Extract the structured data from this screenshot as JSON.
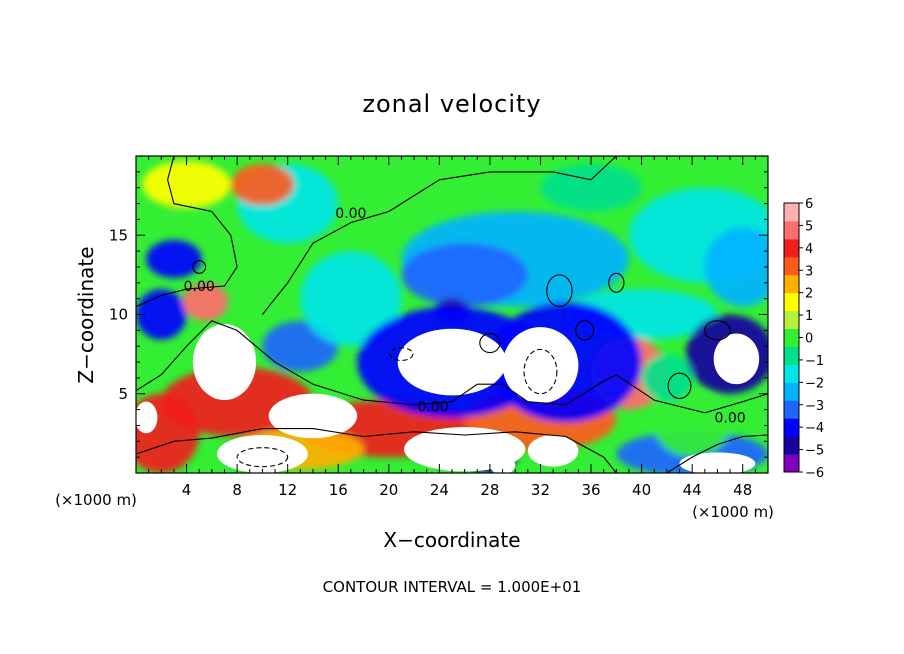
{
  "chart_data": {
    "type": "heatmap",
    "title": "zonal velocity",
    "xlabel": "X−coordinate",
    "ylabel": "Z−coordinate",
    "x_unit": "(×1000 m)",
    "x_unit_right": "(×1000 m)",
    "xlim": [
      0,
      50
    ],
    "ylim": [
      0,
      20
    ],
    "x_ticks": [
      4,
      8,
      12,
      16,
      20,
      24,
      28,
      32,
      36,
      40,
      44,
      48
    ],
    "y_ticks": [
      5,
      10,
      15
    ],
    "colorbar": {
      "ticks": [
        6,
        5,
        4,
        3,
        2,
        1,
        0,
        -1,
        -2,
        -3,
        -4,
        -5,
        -6
      ],
      "labels": [
        "6",
        "5",
        "4",
        "3",
        "2",
        "1",
        "0",
        "−1",
        "−2",
        "−3",
        "−4",
        "−5",
        "−6"
      ],
      "range": [
        -6,
        6
      ]
    },
    "contour_labels": [
      {
        "text": "0.00",
        "x": 5,
        "z": 11.8
      },
      {
        "text": "0.00",
        "x": 17,
        "z": 16.4
      },
      {
        "text": "0.00",
        "x": 23.5,
        "z": 4.2
      },
      {
        "text": "0.00",
        "x": 47,
        "z": 3.5
      }
    ],
    "footer": "CONTOUR INTERVAL = 1.000E+01",
    "saturated_regions_note_color": "#ffffff",
    "colormap": [
      "#7f00bf",
      "#1a00a0",
      "#0000ff",
      "#1e66ff",
      "#00b4ff",
      "#00e6e6",
      "#00e08c",
      "#33ee33",
      "#b4f23c",
      "#ffff00",
      "#ffb000",
      "#ff5a1e",
      "#f01e1e",
      "#ff6e6e",
      "#ffb0b0"
    ]
  }
}
